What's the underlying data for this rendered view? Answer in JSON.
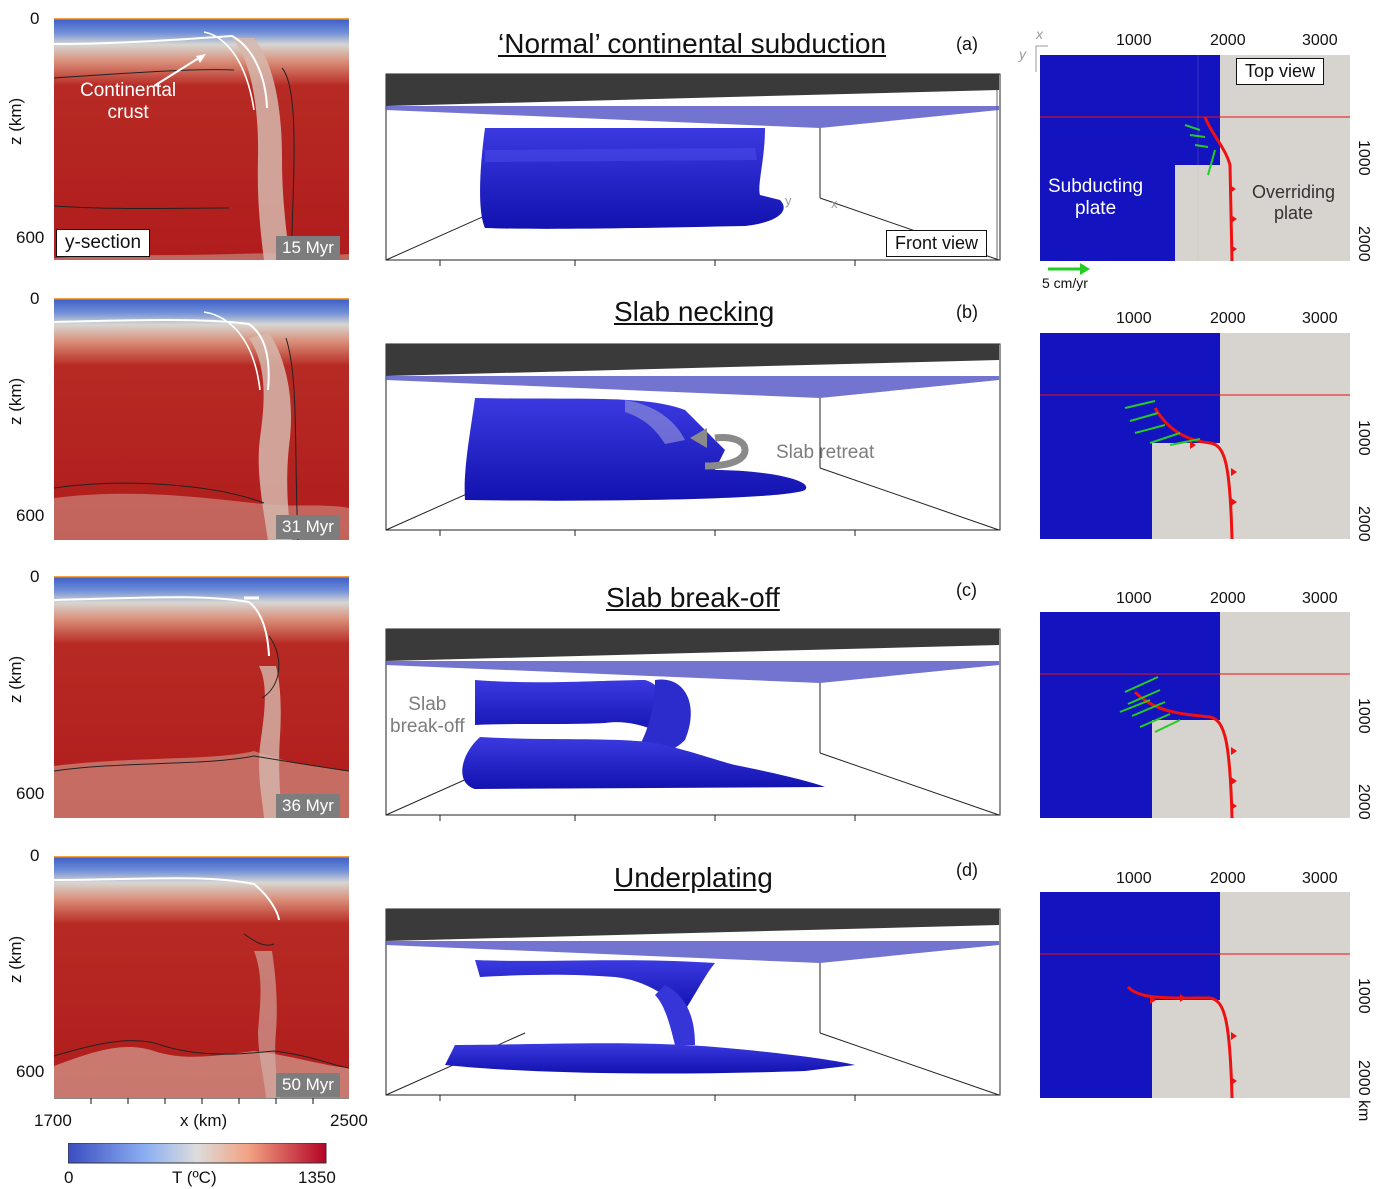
{
  "left_column": {
    "ylabel": "z (km)",
    "ytick_top": "0",
    "ytick_bottom": "600",
    "section_label": "y-section",
    "annotation": "Continental crust",
    "annotation_line1": "Continental",
    "annotation_line2": "crust",
    "xtick_left": "1700",
    "xtick_right": "2500",
    "xlabel": "x (km)",
    "colorbar": {
      "min": "0",
      "max": "1350",
      "label": "T (ºC)"
    }
  },
  "panels": [
    {
      "id": "a",
      "title": "‘Normal’ continental subduction",
      "label": "(a)",
      "time": "15 Myr"
    },
    {
      "id": "b",
      "title": "Slab necking",
      "label": "(b)",
      "time": "31 Myr"
    },
    {
      "id": "c",
      "title": "Slab break-off",
      "label": "(c)",
      "time": "36 Myr"
    },
    {
      "id": "d",
      "title": "Underplating",
      "label": "(d)",
      "time": "50 Myr"
    }
  ],
  "front_view": {
    "label": "Front view",
    "axis_y": "y",
    "axis_x": "x",
    "slab_retreat": "Slab retreat",
    "slab_breakoff_line1": "Slab",
    "slab_breakoff_line2": "break-off"
  },
  "top_view": {
    "label": "Top view",
    "xticks": [
      "1000",
      "2000",
      "3000"
    ],
    "yticks": [
      "1000",
      "2000"
    ],
    "unit_label": "2000 km",
    "subducting_line1": "Subducting",
    "subducting_line2": "plate",
    "overriding_line1": "Overriding",
    "overriding_line2": "plate",
    "scale_label": "5 cm/yr",
    "axis_x": "x",
    "axis_y": "y"
  },
  "colors": {
    "mantle_red": "#b01c1c",
    "slab_blue": "#1818c8",
    "plate_gray": "#d7d3cf",
    "trench_red": "#ee1111",
    "velocity_green": "#22cc22",
    "orange_marker": "#f5a040"
  }
}
